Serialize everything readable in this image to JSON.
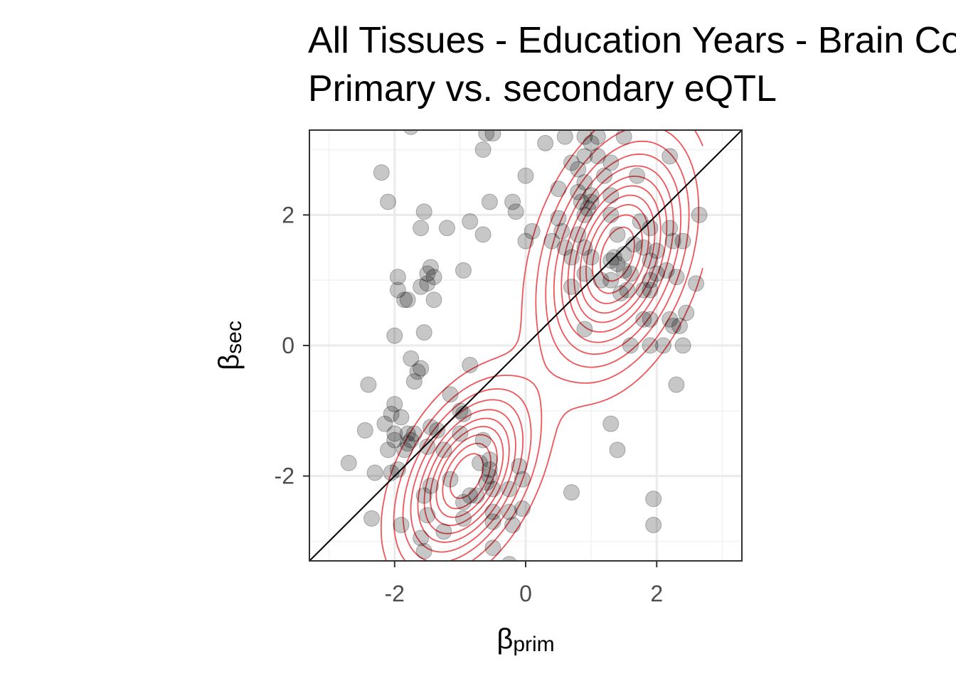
{
  "chart_data": {
    "type": "scatter",
    "title_lines": [
      "All Tissues - Education Years - Brain Cortex",
      "Primary vs. secondary eQTL"
    ],
    "xlabel": {
      "symbol": "β",
      "subscript": "prim"
    },
    "ylabel": {
      "symbol": "β",
      "subscript": "sec"
    },
    "xlim": [
      -3.3,
      3.3
    ],
    "ylim": [
      -3.3,
      3.3
    ],
    "x_ticks": [
      -2,
      0,
      2
    ],
    "y_ticks": [
      -2,
      0,
      2
    ],
    "x_tick_labels": [
      "-2",
      "0",
      "2"
    ],
    "y_tick_labels": [
      "-2",
      "0",
      "2"
    ],
    "grid": true,
    "theme": "bw",
    "reference_line": {
      "type": "identity",
      "slope": 1,
      "intercept": 0,
      "color": "#000000"
    },
    "point_color": "#000000",
    "point_alpha": 0.22,
    "contour_color": "#f0555a",
    "density_peaks": [
      {
        "x": -0.9,
        "y": -2.0,
        "sx": 0.55,
        "sy": 0.75,
        "rho": 0.45,
        "w": 1.0
      },
      {
        "x": 1.4,
        "y": 1.4,
        "sx": 0.6,
        "sy": 0.95,
        "rho": 0.35,
        "w": 1.1
      }
    ],
    "points": [
      [
        -1.75,
        3.35
      ],
      [
        -0.6,
        3.25
      ],
      [
        -0.5,
        3.25
      ],
      [
        -0.65,
        3.0
      ],
      [
        0.6,
        3.2
      ],
      [
        0.9,
        3.2
      ],
      [
        1.0,
        3.1
      ],
      [
        1.1,
        3.2
      ],
      [
        1.5,
        3.2
      ],
      [
        0.3,
        3.1
      ],
      [
        0.7,
        2.8
      ],
      [
        0.9,
        2.9
      ],
      [
        1.1,
        2.9
      ],
      [
        1.3,
        2.8
      ],
      [
        2.2,
        2.9
      ],
      [
        0.8,
        2.7
      ],
      [
        0.9,
        2.5
      ],
      [
        1.2,
        2.6
      ],
      [
        1.7,
        2.6
      ],
      [
        0.0,
        2.6
      ],
      [
        -2.2,
        2.65
      ],
      [
        0.5,
        2.4
      ],
      [
        0.8,
        2.35
      ],
      [
        1.0,
        2.3
      ],
      [
        1.3,
        2.3
      ],
      [
        0.85,
        2.2
      ],
      [
        0.95,
        2.1
      ],
      [
        1.0,
        2.2
      ],
      [
        -0.55,
        2.2
      ],
      [
        -0.2,
        2.2
      ],
      [
        -2.1,
        2.2
      ],
      [
        -1.55,
        2.05
      ],
      [
        -0.15,
        2.05
      ],
      [
        0.5,
        1.95
      ],
      [
        0.9,
        2.0
      ],
      [
        1.3,
        2.0
      ],
      [
        2.65,
        2.0
      ],
      [
        -0.85,
        1.9
      ],
      [
        1.75,
        1.9
      ],
      [
        -1.6,
        1.8
      ],
      [
        -1.2,
        1.8
      ],
      [
        0.1,
        1.75
      ],
      [
        0.55,
        1.75
      ],
      [
        0.8,
        1.7
      ],
      [
        1.9,
        1.8
      ],
      [
        2.2,
        1.8
      ],
      [
        -0.65,
        1.7
      ],
      [
        1.4,
        1.7
      ],
      [
        0.0,
        1.6
      ],
      [
        0.4,
        1.6
      ],
      [
        2.25,
        1.6
      ],
      [
        2.4,
        1.6
      ],
      [
        0.6,
        1.5
      ],
      [
        0.9,
        1.5
      ],
      [
        1.8,
        1.5
      ],
      [
        1.65,
        1.55
      ],
      [
        0.7,
        1.35
      ],
      [
        1.0,
        1.35
      ],
      [
        1.35,
        1.35
      ],
      [
        1.5,
        1.4
      ],
      [
        2.0,
        1.45
      ],
      [
        1.3,
        1.3
      ],
      [
        1.4,
        1.25
      ],
      [
        1.9,
        1.3
      ],
      [
        -1.45,
        1.2
      ],
      [
        -0.95,
        1.15
      ],
      [
        1.5,
        1.15
      ],
      [
        2.15,
        1.15
      ],
      [
        -1.4,
        1.05
      ],
      [
        -1.5,
        1.1
      ],
      [
        -1.95,
        1.05
      ],
      [
        0.9,
        1.1
      ],
      [
        1.6,
        1.1
      ],
      [
        2.0,
        1.1
      ],
      [
        2.3,
        1.05
      ],
      [
        2.6,
        0.95
      ],
      [
        1.15,
        1.0
      ],
      [
        1.3,
        1.0
      ],
      [
        1.9,
        1.0
      ],
      [
        -1.5,
        0.95
      ],
      [
        -1.6,
        0.9
      ],
      [
        0.7,
        0.9
      ],
      [
        1.55,
        0.85
      ],
      [
        1.8,
        0.85
      ],
      [
        -1.95,
        0.85
      ],
      [
        1.45,
        0.8
      ],
      [
        1.9,
        0.85
      ],
      [
        -1.85,
        0.7
      ],
      [
        -1.8,
        0.7
      ],
      [
        -1.4,
        0.7
      ],
      [
        2.45,
        0.5
      ],
      [
        1.8,
        0.4
      ],
      [
        1.9,
        0.4
      ],
      [
        2.2,
        0.4
      ],
      [
        2.25,
        0.3
      ],
      [
        2.35,
        0.3
      ],
      [
        -2.0,
        0.15
      ],
      [
        -1.55,
        0.2
      ],
      [
        0.9,
        0.25
      ],
      [
        1.6,
        0.0
      ],
      [
        1.9,
        0.0
      ],
      [
        2.1,
        0.0
      ],
      [
        2.4,
        0.0
      ],
      [
        -1.75,
        -0.2
      ],
      [
        -1.6,
        -0.35
      ],
      [
        -1.65,
        -0.4
      ],
      [
        -0.85,
        -0.3
      ],
      [
        -2.4,
        -0.6
      ],
      [
        -1.7,
        -0.55
      ],
      [
        -2.0,
        -0.9
      ],
      [
        -2.05,
        -1.05
      ],
      [
        -1.15,
        -0.75
      ],
      [
        2.3,
        -0.6
      ],
      [
        -1.0,
        -1.0
      ],
      [
        -0.95,
        -1.05
      ],
      [
        -1.9,
        -1.1
      ],
      [
        -2.15,
        -1.2
      ],
      [
        -2.45,
        -1.3
      ],
      [
        -2.0,
        -1.35
      ],
      [
        -1.8,
        -1.35
      ],
      [
        -1.7,
        -1.35
      ],
      [
        -1.75,
        -1.45
      ],
      [
        -1.8,
        -1.5
      ],
      [
        -2.0,
        -1.45
      ],
      [
        -1.45,
        -1.25
      ],
      [
        -1.35,
        -1.3
      ],
      [
        -1.0,
        -1.35
      ],
      [
        1.3,
        -1.2
      ],
      [
        -2.1,
        -1.6
      ],
      [
        -1.5,
        -1.55
      ],
      [
        -1.25,
        -1.6
      ],
      [
        -1.85,
        -1.6
      ],
      [
        1.4,
        -1.6
      ],
      [
        -0.65,
        -1.45
      ],
      [
        -0.55,
        -1.75
      ],
      [
        -0.7,
        -1.8
      ],
      [
        -0.55,
        -1.9
      ],
      [
        -0.55,
        -2.0
      ],
      [
        -0.6,
        -2.1
      ],
      [
        -0.1,
        -1.85
      ],
      [
        -2.7,
        -1.8
      ],
      [
        -2.3,
        -1.95
      ],
      [
        -2.05,
        -1.95
      ],
      [
        -1.95,
        -1.9
      ],
      [
        -1.15,
        -2.05
      ],
      [
        -1.45,
        -2.15
      ],
      [
        -0.5,
        -2.2
      ],
      [
        -0.25,
        -2.2
      ],
      [
        -0.05,
        -2.05
      ],
      [
        0.7,
        -2.25
      ],
      [
        -1.55,
        -2.3
      ],
      [
        -0.85,
        -2.3
      ],
      [
        -0.95,
        -2.4
      ],
      [
        -0.75,
        -2.3
      ],
      [
        -0.5,
        -2.55
      ],
      [
        -0.25,
        -2.55
      ],
      [
        -0.05,
        -2.5
      ],
      [
        1.95,
        -2.35
      ],
      [
        -1.5,
        -2.6
      ],
      [
        -0.95,
        -2.65
      ],
      [
        -0.5,
        -2.7
      ],
      [
        -2.35,
        -2.65
      ],
      [
        -0.2,
        -2.75
      ],
      [
        -1.9,
        -2.75
      ],
      [
        -1.25,
        -2.85
      ],
      [
        1.95,
        -2.75
      ],
      [
        -1.6,
        -2.95
      ],
      [
        -1.55,
        -3.15
      ],
      [
        -0.5,
        -3.1
      ],
      [
        -0.25,
        -3.35
      ]
    ]
  }
}
